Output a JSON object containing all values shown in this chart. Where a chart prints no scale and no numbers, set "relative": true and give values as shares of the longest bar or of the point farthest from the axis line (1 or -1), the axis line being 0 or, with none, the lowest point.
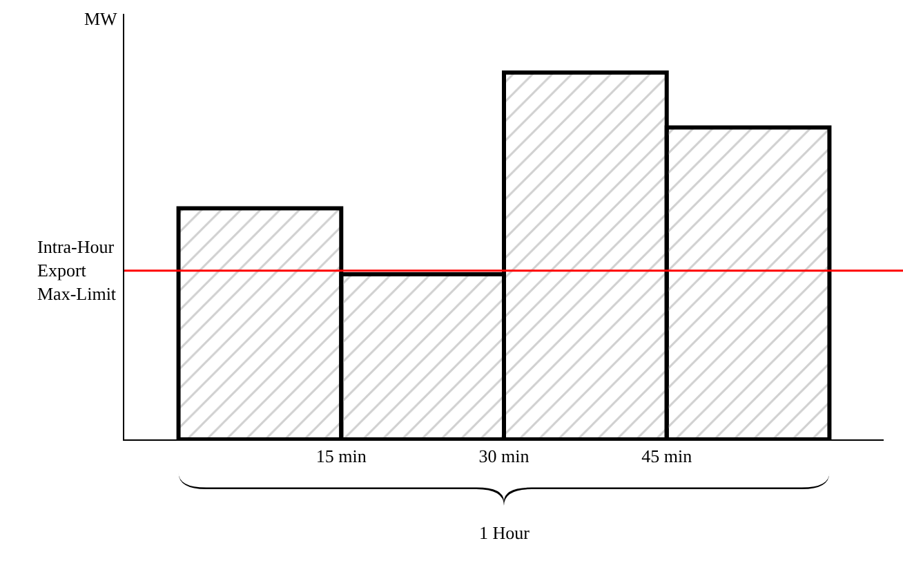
{
  "chart_data": {
    "type": "bar",
    "relative": true,
    "ylabel": "MW",
    "x": [
      7.5,
      22.5,
      37.5,
      52.5
    ],
    "values": [
      0.63,
      0.45,
      1,
      0.85
    ],
    "color": "#000000",
    "xlim": [
      -5,
      65
    ],
    "xticks": [
      {
        "value": 15,
        "label": "15 min"
      },
      {
        "value": 30,
        "label": "30 min"
      },
      {
        "value": 45,
        "label": "45 min"
      }
    ],
    "tick_labels": "x",
    "grid": false,
    "legend": false,
    "ref_lines": [
      {
        "axis": "y",
        "value": 0.46,
        "label": "Intra-Hour Export Max-Limit",
        "color": "#ff0000"
      }
    ],
    "annotations": [
      "1 Hour"
    ]
  }
}
